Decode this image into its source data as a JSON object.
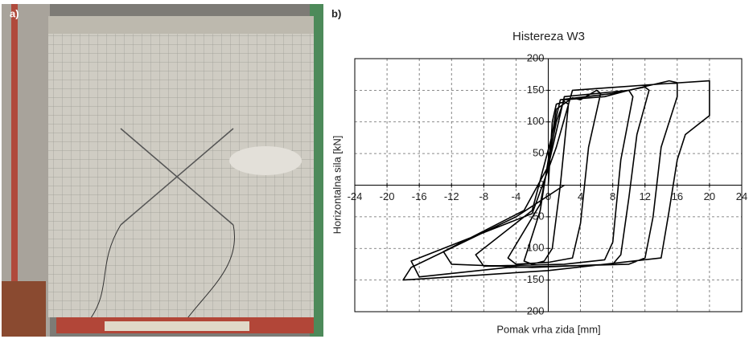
{
  "panels": {
    "a": "a)",
    "b": "b)"
  },
  "chart_data": {
    "type": "line",
    "title": "Histereza W3",
    "x_label": "Pomak vrha zida [mm]",
    "y_label": "Horizontalna sila [kN]",
    "x": [
      0,
      0.5,
      1,
      2,
      2.5,
      1.5,
      0.5,
      -0.5,
      -2,
      -3,
      -1,
      0,
      1,
      3,
      4,
      6,
      6.5,
      5,
      4,
      3,
      0,
      -4,
      -5,
      -1,
      1,
      2,
      7,
      10,
      10.5,
      9,
      8,
      7,
      2,
      -8,
      -9,
      -2,
      0.5,
      1.5,
      8,
      12,
      12.5,
      11,
      10,
      9,
      8,
      -2,
      -12,
      -13,
      -3,
      0,
      2,
      10,
      15,
      16,
      16,
      14,
      13,
      12,
      10,
      -5,
      -16,
      -17,
      -2,
      1,
      3,
      14,
      20,
      20,
      17,
      16,
      15,
      14,
      0,
      -18,
      -17,
      -4,
      2
    ],
    "values": [
      0,
      100,
      128,
      132,
      128,
      0,
      -100,
      -120,
      -125,
      -120,
      -40,
      40,
      120,
      138,
      135,
      150,
      145,
      60,
      -60,
      -115,
      -122,
      -125,
      -115,
      -30,
      100,
      135,
      140,
      150,
      140,
      40,
      -90,
      -118,
      -125,
      -128,
      -110,
      -40,
      80,
      135,
      145,
      155,
      150,
      80,
      -20,
      -110,
      -125,
      -130,
      -125,
      -105,
      -40,
      30,
      140,
      150,
      165,
      162,
      140,
      60,
      -50,
      -115,
      -125,
      -130,
      -145,
      -120,
      -45,
      60,
      150,
      160,
      165,
      110,
      80,
      40,
      -40,
      -115,
      -135,
      -150,
      -130,
      -50,
      0
    ],
    "color": "#000000",
    "xlim": [
      -24,
      24
    ],
    "xticks": [
      -24,
      -20,
      -16,
      -12,
      -8,
      -4,
      0,
      4,
      8,
      12,
      16,
      20,
      24
    ],
    "ylim": [
      -200,
      200
    ],
    "yticks": [
      -200,
      -150,
      -100,
      -50,
      0,
      50,
      100,
      150,
      200
    ],
    "grid": true
  }
}
